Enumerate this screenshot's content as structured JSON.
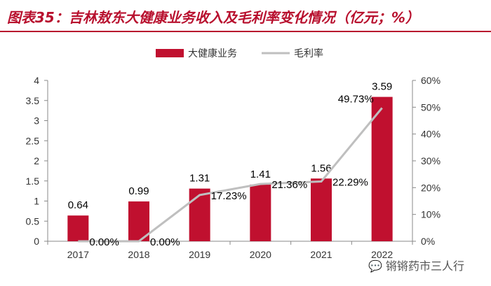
{
  "title": "图表35：吉林敖东大健康业务收入及毛利率变化情况（亿元；%）",
  "watermark": "锵锵药市三人行",
  "colors": {
    "bar": "#c0102f",
    "line": "#bfbfbf",
    "title": "#b8102e",
    "axis": "#888888"
  },
  "chart_data": {
    "type": "bar",
    "title": "图表35：吉林敖东大健康业务收入及毛利率变化情况（亿元；%）",
    "categories": [
      "2017",
      "2018",
      "2019",
      "2020",
      "2021",
      "2022"
    ],
    "series": [
      {
        "name": "大健康业务",
        "type": "bar",
        "axis": "left",
        "values": [
          0.64,
          0.99,
          1.31,
          1.41,
          1.56,
          3.59
        ],
        "labels": [
          "0.64",
          "0.99",
          "1.31",
          "1.41",
          "1.56",
          "3.59"
        ]
      },
      {
        "name": "毛利率",
        "type": "line",
        "axis": "right",
        "values": [
          0.0,
          0.0,
          17.23,
          21.36,
          22.29,
          49.73
        ],
        "labels": [
          "0.00%",
          "0.00%",
          "17.23%",
          "21.36%",
          "22.29%",
          "49.73%"
        ]
      }
    ],
    "y_left": {
      "lim": [
        0,
        4
      ],
      "ticks": [
        "0",
        "0.5",
        "1",
        "1.5",
        "2",
        "2.5",
        "3",
        "3.5",
        "4"
      ]
    },
    "y_right": {
      "lim": [
        0,
        60
      ],
      "ticks": [
        "0%",
        "10%",
        "20%",
        "30%",
        "40%",
        "50%",
        "60%"
      ]
    },
    "legend": {
      "position": "top-center",
      "items": [
        "大健康业务",
        "毛利率"
      ]
    },
    "grid": false
  }
}
